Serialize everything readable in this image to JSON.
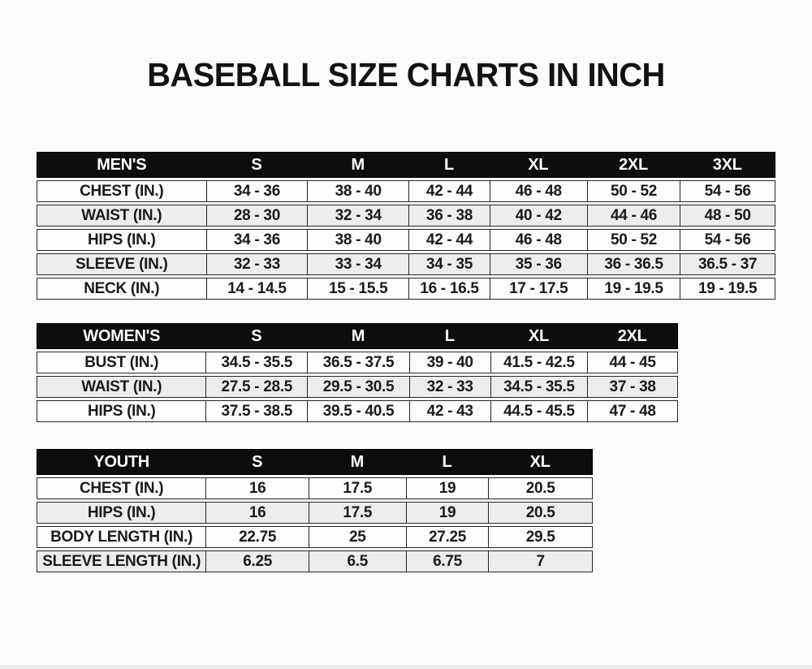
{
  "title": "BASEBALL SIZE CHARTS IN INCH",
  "tables": [
    {
      "id": "mens",
      "header": "MEN'S",
      "sizes": [
        "S",
        "M",
        "L",
        "XL",
        "2XL",
        "3XL"
      ],
      "rows": [
        {
          "label": "CHEST (IN.)",
          "values": [
            "34 - 36",
            "38 - 40",
            "42 - 44",
            "46 - 48",
            "50 - 52",
            "54 - 56"
          ]
        },
        {
          "label": "WAIST (IN.)",
          "values": [
            "28 - 30",
            "32 - 34",
            "36 - 38",
            "40 - 42",
            "44 - 46",
            "48 - 50"
          ]
        },
        {
          "label": "HIPS (IN.)",
          "values": [
            "34 - 36",
            "38 - 40",
            "42 - 44",
            "46 - 48",
            "50 - 52",
            "54 - 56"
          ]
        },
        {
          "label": "SLEEVE (IN.)",
          "values": [
            "32 - 33",
            "33 - 34",
            "34 - 35",
            "35 - 36",
            "36 - 36.5",
            "36.5 - 37"
          ]
        },
        {
          "label": "NECK (IN.)",
          "values": [
            "14 - 14.5",
            "15 - 15.5",
            "16 - 16.5",
            "17 - 17.5",
            "19 - 19.5",
            "19 - 19.5"
          ]
        }
      ]
    },
    {
      "id": "womens",
      "header": "WOMEN'S",
      "sizes": [
        "S",
        "M",
        "L",
        "XL",
        "2XL"
      ],
      "rows": [
        {
          "label": "BUST (IN.)",
          "values": [
            "34.5 - 35.5",
            "36.5 - 37.5",
            "39 - 40",
            "41.5 - 42.5",
            "44 - 45"
          ]
        },
        {
          "label": "WAIST (IN.)",
          "values": [
            "27.5 - 28.5",
            "29.5 - 30.5",
            "32 - 33",
            "34.5 - 35.5",
            "37 - 38"
          ]
        },
        {
          "label": "HIPS (IN.)",
          "values": [
            "37.5 - 38.5",
            "39.5 - 40.5",
            "42 - 43",
            "44.5 - 45.5",
            "47 - 48"
          ]
        }
      ]
    },
    {
      "id": "youth",
      "header": "YOUTH",
      "sizes": [
        "S",
        "M",
        "L",
        "XL"
      ],
      "rows": [
        {
          "label": "CHEST (IN.)",
          "values": [
            "16",
            "17.5",
            "19",
            "20.5"
          ]
        },
        {
          "label": "HIPS (IN.)",
          "values": [
            "16",
            "17.5",
            "19",
            "20.5"
          ]
        },
        {
          "label": "BODY LENGTH (IN.)",
          "values": [
            "22.75",
            "25",
            "27.25",
            "29.5"
          ]
        },
        {
          "label": "SLEEVE LENGTH (IN.)",
          "values": [
            "6.25",
            "6.5",
            "6.75",
            "7"
          ]
        }
      ]
    }
  ],
  "colors": {
    "header_bg": "#0d0d0d",
    "header_text": "#ffffff",
    "row_bg": "#fdfdfd",
    "row_alt_bg": "#ececec",
    "border": "#262626",
    "text": "#1a1a1a",
    "page_bg": "#fcfcfb"
  }
}
